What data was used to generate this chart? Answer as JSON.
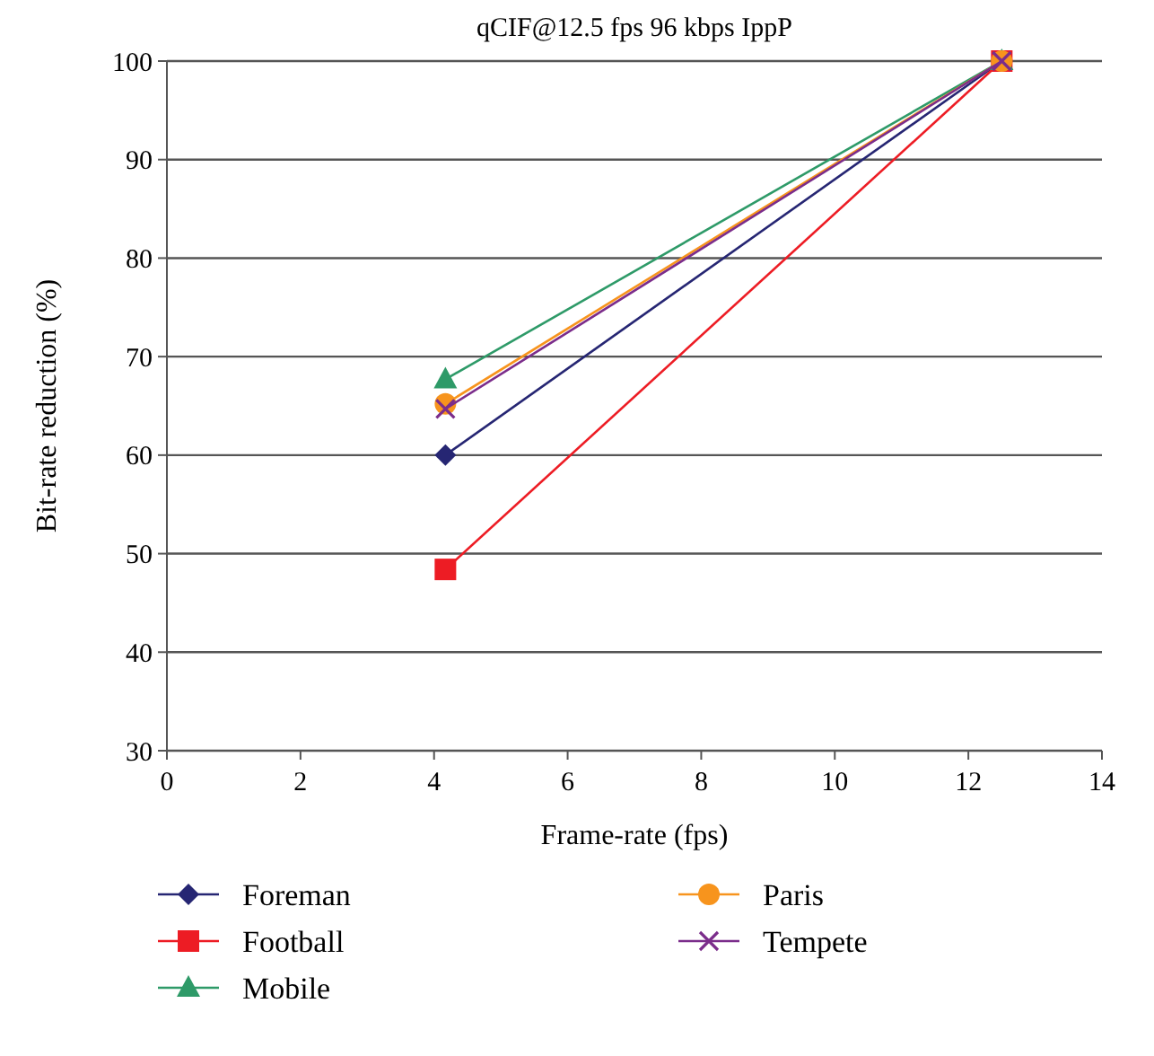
{
  "chart_data": {
    "type": "line",
    "title": "qCIF@12.5 fps 96 kbps IppP",
    "xlabel": "Frame-rate (fps)",
    "ylabel": "Bit-rate reduction (%)",
    "x": [
      4.17,
      12.5
    ],
    "xlim": [
      0,
      14
    ],
    "xticks": [
      0,
      2,
      4,
      6,
      8,
      10,
      12,
      14
    ],
    "ylim": [
      30,
      100
    ],
    "yticks": [
      30,
      40,
      50,
      60,
      70,
      80,
      90,
      100
    ],
    "grid": "y",
    "legend": "bottom",
    "series": [
      {
        "name": "Foreman",
        "color": "#262673",
        "marker": "diamond",
        "values": [
          60,
          100
        ]
      },
      {
        "name": "Football",
        "color": "#ed1c24",
        "marker": "square",
        "values": [
          48.4,
          100
        ]
      },
      {
        "name": "Mobile",
        "color": "#2e9a68",
        "marker": "triangle",
        "values": [
          67.7,
          100
        ]
      },
      {
        "name": "Paris",
        "color": "#f7941d",
        "marker": "circle",
        "values": [
          65.2,
          100
        ]
      },
      {
        "name": "Tempete",
        "color": "#7b2d8b",
        "marker": "cross",
        "values": [
          64.7,
          100
        ]
      }
    ]
  }
}
